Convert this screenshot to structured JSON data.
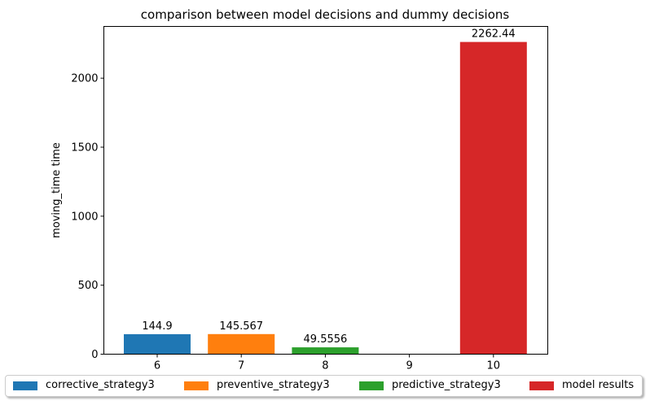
{
  "chart_data": {
    "type": "bar",
    "title": "comparison between model decisions and dummy decisions",
    "xlabel": "",
    "ylabel": "moving_time time",
    "categories": [
      "6",
      "7",
      "8",
      "9",
      "10"
    ],
    "ylim": [
      0,
      2375
    ],
    "yticks": [
      0,
      500,
      1000,
      1500,
      2000
    ],
    "grid": false,
    "legend_placement": "bottom",
    "series": [
      {
        "name": "corrective_strategy3",
        "x": "6",
        "value": 144.9,
        "label": "144.9",
        "color": "#1f77b4"
      },
      {
        "name": "preventive_strategy3",
        "x": "7",
        "value": 145.567,
        "label": "145.567",
        "color": "#ff7f0e"
      },
      {
        "name": "predictive_strategy3",
        "x": "8",
        "value": 49.5556,
        "label": "49.5556",
        "color": "#2ca02c"
      },
      {
        "name": "model results",
        "x": "10",
        "value": 2262.44,
        "label": "2262.44",
        "color": "#d62728"
      }
    ]
  }
}
